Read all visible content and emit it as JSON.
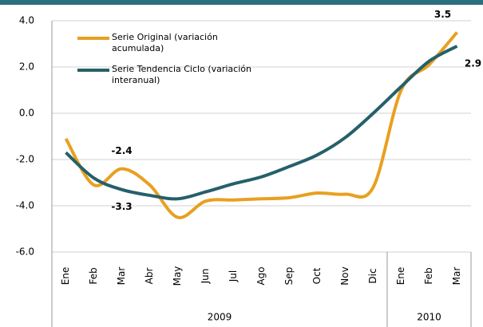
{
  "chart_data": {
    "type": "line",
    "categories": [
      "Ene",
      "Feb",
      "Mar",
      "Abr",
      "May",
      "Jun",
      "Jul",
      "Ago",
      "Sep",
      "Oct",
      "Nov",
      "Dic",
      "Ene",
      "Feb",
      "Mar"
    ],
    "groups": [
      {
        "label": "2009",
        "start": 0,
        "end": 11
      },
      {
        "label": "2010",
        "start": 12,
        "end": 14
      }
    ],
    "series": [
      {
        "name": "Serie Original (variación acumulada)",
        "color": "#e8a020",
        "labels_at": [
          2,
          14
        ],
        "values": [
          -1.1,
          -3.1,
          -2.4,
          -3.1,
          -4.5,
          -3.8,
          -3.75,
          -3.7,
          -3.65,
          -3.45,
          -3.5,
          -3.2,
          1.0,
          2.1,
          3.5
        ]
      },
      {
        "name": "Serie Tendencia Ciclo (variación interanual)",
        "color": "#25606a",
        "labels_at": [
          2,
          14
        ],
        "values": [
          -1.7,
          -2.8,
          -3.3,
          -3.55,
          -3.7,
          -3.4,
          -3.05,
          -2.75,
          -2.3,
          -1.8,
          -1.05,
          0.0,
          1.15,
          2.25,
          2.9
        ]
      }
    ],
    "ylim": [
      -6,
      4
    ],
    "yticks": [
      {
        "value": -6,
        "label": "-6.0"
      },
      {
        "value": -4,
        "label": "-4.0"
      },
      {
        "value": -2,
        "label": "-2.0"
      },
      {
        "value": 0,
        "label": "0.0"
      },
      {
        "value": 2,
        "label": "2.0"
      },
      {
        "value": 4,
        "label": "4.0"
      }
    ],
    "grid": true
  }
}
